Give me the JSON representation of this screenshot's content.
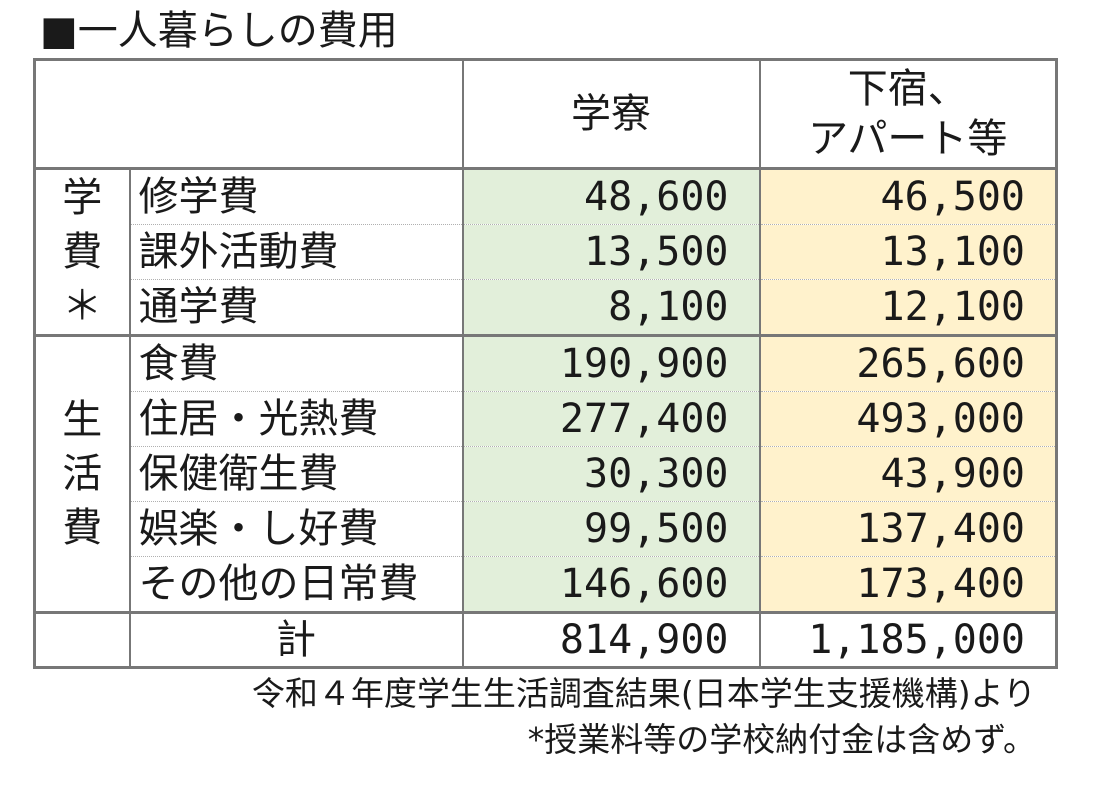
{
  "title": "■一人暮らしの費用",
  "header": {
    "col_dorm": "学寮",
    "col_apartment_line1": "下宿、",
    "col_apartment_line2": "アパート等"
  },
  "groups": {
    "tuition": [
      "学",
      "費",
      "＊"
    ],
    "living": [
      "生",
      "活",
      "費"
    ]
  },
  "rows": [
    {
      "item": "修学費",
      "dorm": "48,600",
      "apartment": "46,500"
    },
    {
      "item": "課外活動費",
      "dorm": "13,500",
      "apartment": "13,100"
    },
    {
      "item": "通学費",
      "dorm": "8,100",
      "apartment": "12,100"
    },
    {
      "item": "食費",
      "dorm": "190,900",
      "apartment": "265,600"
    },
    {
      "item": "住居・光熱費",
      "dorm": "277,400",
      "apartment": "493,000"
    },
    {
      "item": "保健衛生費",
      "dorm": "30,300",
      "apartment": "43,900"
    },
    {
      "item": "娯楽・し好費",
      "dorm": "99,500",
      "apartment": "137,400"
    },
    {
      "item": "その他の日常費",
      "dorm": "146,600",
      "apartment": "173,400"
    }
  ],
  "total": {
    "label": "計",
    "dorm": "814,900",
    "apartment": "1,185,000"
  },
  "notes": {
    "source": "令和４年度学生生活調査結果(日本学生支援機構)より",
    "footnote": "*授業料等の学校納付金は含めず。"
  },
  "colors": {
    "dorm_fill": "#e2efda",
    "apartment_fill": "#fff2cc",
    "border": "#777777"
  }
}
